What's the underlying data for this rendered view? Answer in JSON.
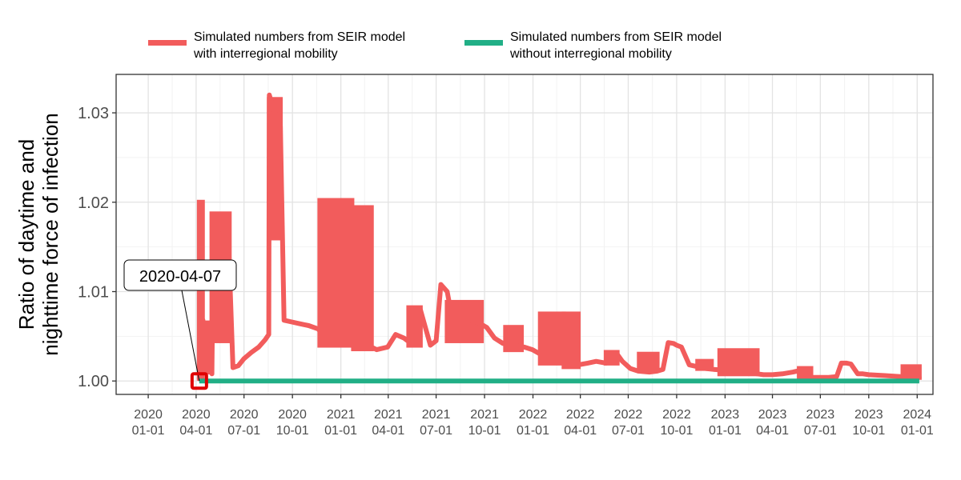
{
  "chart_data": {
    "type": "line",
    "title": "",
    "xlabel": "",
    "ylabel_lines": [
      "Ratio of daytime and",
      "nighttime force of infection"
    ],
    "xlim": [
      "2019-11-01",
      "2024-01-31"
    ],
    "ylim": [
      0.9985,
      1.0343
    ],
    "grid": true,
    "legend_position": "top",
    "x_ticks": [
      {
        "date": "2020-01-01",
        "label": [
          "2020",
          "01-01"
        ]
      },
      {
        "date": "2020-04-01",
        "label": [
          "2020",
          "04-01"
        ]
      },
      {
        "date": "2020-07-01",
        "label": [
          "2020",
          "07-01"
        ]
      },
      {
        "date": "2020-10-01",
        "label": [
          "2020",
          "10-01"
        ]
      },
      {
        "date": "2021-01-01",
        "label": [
          "2021",
          "01-01"
        ]
      },
      {
        "date": "2021-04-01",
        "label": [
          "2021",
          "04-01"
        ]
      },
      {
        "date": "2021-07-01",
        "label": [
          "2021",
          "07-01"
        ]
      },
      {
        "date": "2021-10-01",
        "label": [
          "2021",
          "10-01"
        ]
      },
      {
        "date": "2022-01-01",
        "label": [
          "2022",
          "01-01"
        ]
      },
      {
        "date": "2022-04-01",
        "label": [
          "2022",
          "04-01"
        ]
      },
      {
        "date": "2022-07-01",
        "label": [
          "2022",
          "07-01"
        ]
      },
      {
        "date": "2022-10-01",
        "label": [
          "2022",
          "10-01"
        ]
      },
      {
        "date": "2023-01-01",
        "label": [
          "2023",
          "01-01"
        ]
      },
      {
        "date": "2023-04-01",
        "label": [
          "2023",
          "04-01"
        ]
      },
      {
        "date": "2023-07-01",
        "label": [
          "2023",
          "07-01"
        ]
      },
      {
        "date": "2023-10-01",
        "label": [
          "2023",
          "10-01"
        ]
      },
      {
        "date": "2024-01-01",
        "label": [
          "2024",
          "01-01"
        ]
      }
    ],
    "y_ticks": [
      {
        "value": 1.0,
        "label": "1.00"
      },
      {
        "value": 1.01,
        "label": "1.01"
      },
      {
        "value": 1.02,
        "label": "1.02"
      },
      {
        "value": 1.03,
        "label": "1.03"
      }
    ],
    "series": [
      {
        "name": "Simulated numbers from SEIR model\nwith interregional mobility",
        "color": "#F25C5C",
        "bands": [
          {
            "x0": "2020-04-07",
            "x1": "2020-04-13",
            "low": 1.0003,
            "high": 1.02
          },
          {
            "x0": "2020-04-13",
            "x1": "2020-04-29",
            "low": 1.001,
            "high": 1.0065
          },
          {
            "x0": "2020-05-01",
            "x1": "2020-06-03",
            "low": 1.0045,
            "high": 1.0187
          },
          {
            "x0": "2020-08-18",
            "x1": "2020-09-08",
            "low": 1.016,
            "high": 1.0315
          },
          {
            "x0": "2020-11-22",
            "x1": "2021-01-22",
            "low": 1.004,
            "high": 1.0202
          },
          {
            "x0": "2021-01-25",
            "x1": "2021-02-28",
            "low": 1.0036,
            "high": 1.0194
          },
          {
            "x0": "2021-05-10",
            "x1": "2021-06-01",
            "low": 1.004,
            "high": 1.0082
          },
          {
            "x0": "2021-07-22",
            "x1": "2021-09-25",
            "low": 1.0045,
            "high": 1.0088
          },
          {
            "x0": "2021-11-10",
            "x1": "2021-12-10",
            "low": 1.0035,
            "high": 1.006
          },
          {
            "x0": "2022-01-15",
            "x1": "2022-02-28",
            "low": 1.002,
            "high": 1.0075
          },
          {
            "x0": "2022-03-01",
            "x1": "2022-03-28",
            "low": 1.0016,
            "high": 1.0075
          },
          {
            "x0": "2022-05-20",
            "x1": "2022-06-10",
            "low": 1.002,
            "high": 1.0032
          },
          {
            "x0": "2022-07-22",
            "x1": "2022-08-25",
            "low": 1.0012,
            "high": 1.003
          },
          {
            "x0": "2022-11-10",
            "x1": "2022-12-06",
            "low": 1.0014,
            "high": 1.0022
          },
          {
            "x0": "2022-12-22",
            "x1": "2023-03-03",
            "low": 1.0008,
            "high": 1.0034
          },
          {
            "x0": "2023-05-22",
            "x1": "2023-06-13",
            "low": 1.0005,
            "high": 1.0014
          },
          {
            "x0": "2023-12-05",
            "x1": "2024-01-05",
            "low": 1.0004,
            "high": 1.0016
          }
        ],
        "x": [
          "2020-04-07",
          "2020-04-12",
          "2020-04-14",
          "2020-04-20",
          "2020-04-27",
          "2020-05-01",
          "2020-05-04",
          "2020-05-10",
          "2020-05-25",
          "2020-06-01",
          "2020-06-10",
          "2020-06-20",
          "2020-07-01",
          "2020-07-15",
          "2020-07-29",
          "2020-08-10",
          "2020-08-17",
          "2020-08-18",
          "2020-08-22",
          "2020-09-01",
          "2020-09-08",
          "2020-09-15",
          "2020-09-30",
          "2020-10-15",
          "2020-11-01",
          "2020-11-20",
          "2020-11-25",
          "2020-12-15",
          "2021-01-22",
          "2021-01-25",
          "2021-02-28",
          "2021-03-10",
          "2021-03-31",
          "2021-04-15",
          "2021-05-01",
          "2021-05-10",
          "2021-05-20",
          "2021-06-01",
          "2021-06-20",
          "2021-07-01",
          "2021-07-10",
          "2021-07-22",
          "2021-07-30",
          "2021-08-25",
          "2021-09-20",
          "2021-10-05",
          "2021-10-20",
          "2021-11-05",
          "2021-11-25",
          "2021-12-15",
          "2021-12-31",
          "2022-01-15",
          "2022-02-15",
          "2022-03-10",
          "2022-03-28",
          "2022-04-15",
          "2022-05-01",
          "2022-05-20",
          "2022-06-10",
          "2022-06-20",
          "2022-07-05",
          "2022-07-20",
          "2022-08-10",
          "2022-08-25",
          "2022-09-05",
          "2022-09-15",
          "2022-09-25",
          "2022-10-01",
          "2022-10-10",
          "2022-10-25",
          "2022-11-10",
          "2022-11-25",
          "2022-12-10",
          "2022-12-31",
          "2023-01-20",
          "2023-02-10",
          "2023-03-03",
          "2023-03-15",
          "2023-04-01",
          "2023-04-20",
          "2023-05-10",
          "2023-05-25",
          "2023-06-10",
          "2023-06-15",
          "2023-07-01",
          "2023-07-15",
          "2023-08-01",
          "2023-08-10",
          "2023-08-20",
          "2023-08-28",
          "2023-09-10",
          "2023-09-20",
          "2023-10-01",
          "2023-11-01",
          "2023-11-30",
          "2023-12-05",
          "2024-01-05"
        ],
        "y": [
          1.0003,
          1.002,
          1.0068,
          1.0045,
          1.003,
          1.0008,
          1.0175,
          1.0172,
          1.0168,
          1.0165,
          1.0015,
          1.0017,
          1.0025,
          1.0032,
          1.0038,
          1.0046,
          1.0052,
          1.032,
          1.0312,
          1.0295,
          1.0285,
          1.0068,
          1.0066,
          1.0064,
          1.0062,
          1.0058,
          1.0052,
          1.005,
          1.0045,
          1.004,
          1.0038,
          1.0035,
          1.0038,
          1.0052,
          1.0048,
          1.0044,
          1.0078,
          1.008,
          1.004,
          1.0045,
          1.0108,
          1.01,
          1.0075,
          1.007,
          1.0065,
          1.006,
          1.0048,
          1.0042,
          1.004,
          1.0038,
          1.0035,
          1.003,
          1.0025,
          1.002,
          1.0018,
          1.002,
          1.0022,
          1.002,
          1.003,
          1.0022,
          1.0014,
          1.0011,
          1.001,
          1.0011,
          1.0013,
          1.0043,
          1.0042,
          1.004,
          1.0038,
          1.0018,
          1.0016,
          1.0014,
          1.0013,
          1.0012,
          1.001,
          1.001,
          1.0008,
          1.0007,
          1.0007,
          1.0008,
          1.001,
          1.0012,
          1.0005,
          1.0004,
          1.0004,
          1.0004,
          1.0005,
          1.002,
          1.002,
          1.0019,
          1.0008,
          1.0008,
          1.0007,
          1.0006,
          1.0005,
          1.0004,
          1.0004
        ]
      },
      {
        "name": "Simulated numbers from SEIR model\nwithout interregional mobility",
        "color": "#21AF86",
        "x": [
          "2020-04-07",
          "2024-01-05"
        ],
        "y": [
          1.0,
          1.0
        ]
      }
    ],
    "annotation": {
      "label": "2020-04-07",
      "x": "2020-04-07",
      "y": 1.0,
      "marker_color": "#E00000"
    }
  }
}
